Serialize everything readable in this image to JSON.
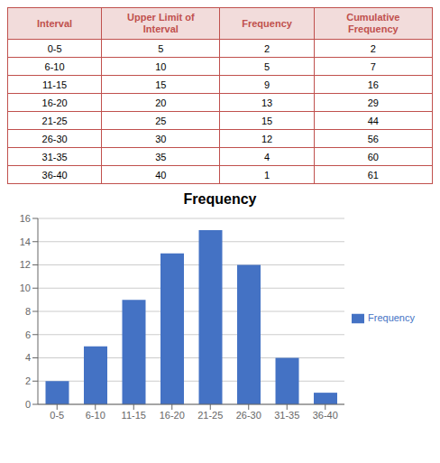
{
  "chart_data": [
    {
      "type": "table",
      "color": "#C0504D",
      "columns": [
        "Interval",
        "Upper Limit of\nInterval",
        "Frequency",
        "Cumulative\nFrequency"
      ],
      "rows": [
        [
          "0-5",
          "5",
          "2",
          "2"
        ],
        [
          "6-10",
          "10",
          "5",
          "7"
        ],
        [
          "11-15",
          "15",
          "9",
          "16"
        ],
        [
          "16-20",
          "20",
          "13",
          "29"
        ],
        [
          "21-25",
          "25",
          "15",
          "44"
        ],
        [
          "26-30",
          "30",
          "12",
          "56"
        ],
        [
          "31-35",
          "35",
          "4",
          "60"
        ],
        [
          "36-40",
          "40",
          "1",
          "61"
        ]
      ]
    },
    {
      "type": "bar",
      "title": "Frequency",
      "categories": [
        "0-5",
        "6-10",
        "11-15",
        "16-20",
        "21-25",
        "26-30",
        "31-35",
        "36-40"
      ],
      "series": [
        {
          "name": "Frequency",
          "color": "#4472C4",
          "values": [
            2,
            5,
            9,
            13,
            15,
            12,
            4,
            1
          ]
        }
      ],
      "ylim": [
        0,
        16
      ],
      "yticks": [
        0,
        2,
        4,
        6,
        8,
        10,
        12,
        14,
        16
      ],
      "grid": true,
      "legend": "right"
    }
  ]
}
